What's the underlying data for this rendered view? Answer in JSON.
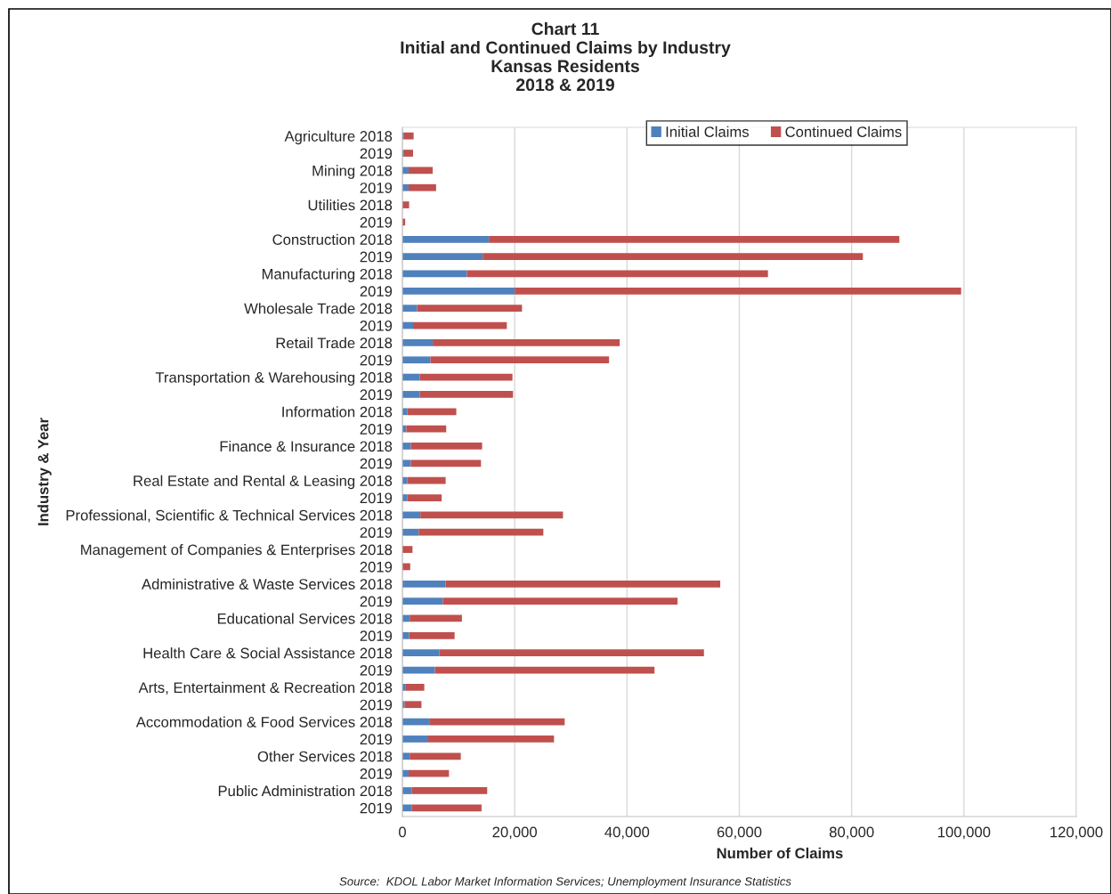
{
  "chart_data": {
    "type": "bar",
    "orientation": "horizontal",
    "stacked": true,
    "title": "Chart 11\nInitial and Continued Claims by Industry\nKansas Residents\n2018 & 2019",
    "xlabel": "Number of Claims",
    "ylabel": "Industry & Year",
    "categories": [
      "Agriculture 2018",
      "2019",
      "Mining 2018",
      "2019",
      "Utilities 2018",
      "2019",
      "Construction 2018",
      "2019",
      "Manufacturing 2018",
      "2019",
      "Wholesale Trade 2018",
      "2019",
      "Retail Trade 2018",
      "2019",
      "Transportation & Warehousing 2018",
      "2019",
      "Information 2018",
      "2019",
      "Finance & Insurance 2018",
      "2019",
      "Real Estate and Rental & Leasing 2018",
      "2019",
      "Professional, Scientific & Technical Services 2018",
      "2019",
      "Management of Companies & Enterprises 2018",
      "2019",
      "Administrative & Waste Services 2018",
      "2019",
      "Educational Services 2018",
      "2019",
      "Health Care & Social Assistance 2018",
      "2019",
      "Arts, Entertainment & Recreation 2018",
      "2019",
      "Accommodation & Food Services 2018",
      "2019",
      "Other Services 2018",
      "2019",
      "Public Administration 2018",
      "2019"
    ],
    "series": [
      {
        "name": "Initial Claims",
        "color": "#4f81bd",
        "values": [
          300,
          300,
          1100,
          1100,
          null,
          null,
          15400,
          14300,
          11500,
          20000,
          2600,
          1900,
          5400,
          5000,
          3100,
          3100,
          900,
          700,
          1500,
          1500,
          900,
          900,
          3200,
          2900,
          null,
          null,
          7700,
          7200,
          1300,
          1200,
          6600,
          5800,
          500,
          400,
          4900,
          4600,
          1300,
          1100,
          1700,
          1700
        ]
      },
      {
        "name": "Continued Claims",
        "color": "#c0504d",
        "values": [
          1700,
          1600,
          4300,
          4900,
          1200,
          500,
          73100,
          67700,
          53600,
          79500,
          18700,
          16700,
          33300,
          31800,
          16500,
          16600,
          8700,
          7100,
          12700,
          12500,
          6800,
          6100,
          25400,
          22200,
          1800,
          1400,
          48900,
          41800,
          9300,
          8100,
          47100,
          39100,
          3400,
          3000,
          24000,
          22400,
          9100,
          7200,
          13400,
          12400
        ]
      }
    ],
    "xlim": [
      0,
      120000
    ],
    "xticks": [
      {
        "value": 0,
        "label": "0"
      },
      {
        "value": 20000,
        "label": "20,000"
      },
      {
        "value": 40000,
        "label": "40,000"
      },
      {
        "value": 60000,
        "label": "60,000"
      },
      {
        "value": 80000,
        "label": "80,000"
      },
      {
        "value": 100000,
        "label": "100,000"
      },
      {
        "value": 120000,
        "label": "120,000"
      }
    ],
    "grid": "x",
    "legend": "top right",
    "annotations": [
      "Source:  KDOL Labor Market Information Services; Unemployment Insurance Statistics"
    ]
  }
}
